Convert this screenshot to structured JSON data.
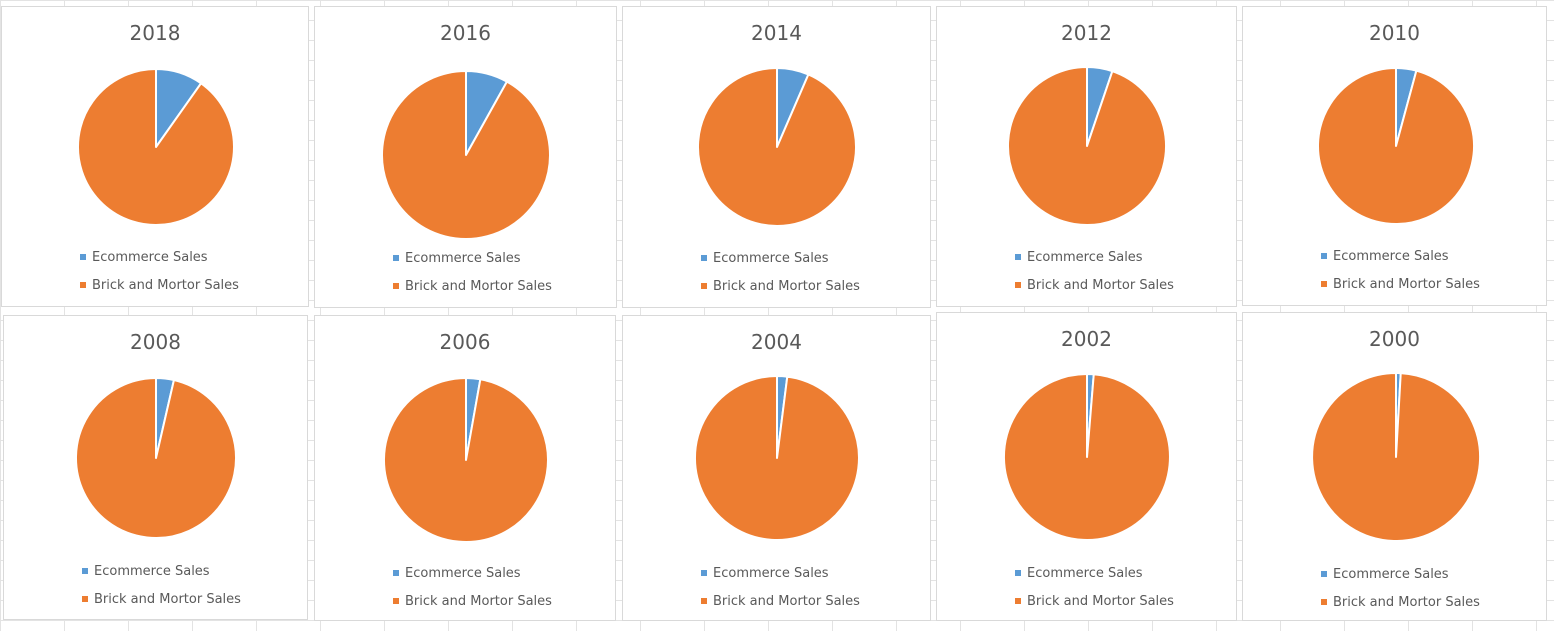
{
  "colors": {
    "ecommerce": "#5b9bd5",
    "brick": "#ed7d31",
    "slice_border": "#ffffff"
  },
  "chart_data": [
    {
      "type": "pie",
      "title": "2018",
      "categories": [
        "Ecommerce Sales",
        "Brick and Mortor Sales"
      ],
      "values": [
        9.8,
        90.2
      ],
      "legend": "bottom"
    },
    {
      "type": "pie",
      "title": "2016",
      "categories": [
        "Ecommerce Sales",
        "Brick and Mortor Sales"
      ],
      "values": [
        8.1,
        91.9
      ],
      "legend": "bottom"
    },
    {
      "type": "pie",
      "title": "2014",
      "categories": [
        "Ecommerce Sales",
        "Brick and Mortor Sales"
      ],
      "values": [
        6.5,
        93.5
      ],
      "legend": "bottom"
    },
    {
      "type": "pie",
      "title": "2012",
      "categories": [
        "Ecommerce Sales",
        "Brick and Mortor Sales"
      ],
      "values": [
        5.2,
        94.8
      ],
      "legend": "bottom"
    },
    {
      "type": "pie",
      "title": "2010",
      "categories": [
        "Ecommerce Sales",
        "Brick and Mortor Sales"
      ],
      "values": [
        4.2,
        95.8
      ],
      "legend": "bottom"
    },
    {
      "type": "pie",
      "title": "2008",
      "categories": [
        "Ecommerce Sales",
        "Brick and Mortor Sales"
      ],
      "values": [
        3.6,
        96.4
      ],
      "legend": "bottom"
    },
    {
      "type": "pie",
      "title": "2006",
      "categories": [
        "Ecommerce Sales",
        "Brick and Mortor Sales"
      ],
      "values": [
        2.8,
        97.2
      ],
      "legend": "bottom"
    },
    {
      "type": "pie",
      "title": "2004",
      "categories": [
        "Ecommerce Sales",
        "Brick and Mortor Sales"
      ],
      "values": [
        2.0,
        98.0
      ],
      "legend": "bottom"
    },
    {
      "type": "pie",
      "title": "2002",
      "categories": [
        "Ecommerce Sales",
        "Brick and Mortor Sales"
      ],
      "values": [
        1.3,
        98.7
      ],
      "legend": "bottom"
    },
    {
      "type": "pie",
      "title": "2000",
      "categories": [
        "Ecommerce Sales",
        "Brick and Mortor Sales"
      ],
      "values": [
        0.9,
        99.1
      ],
      "legend": "bottom"
    }
  ]
}
